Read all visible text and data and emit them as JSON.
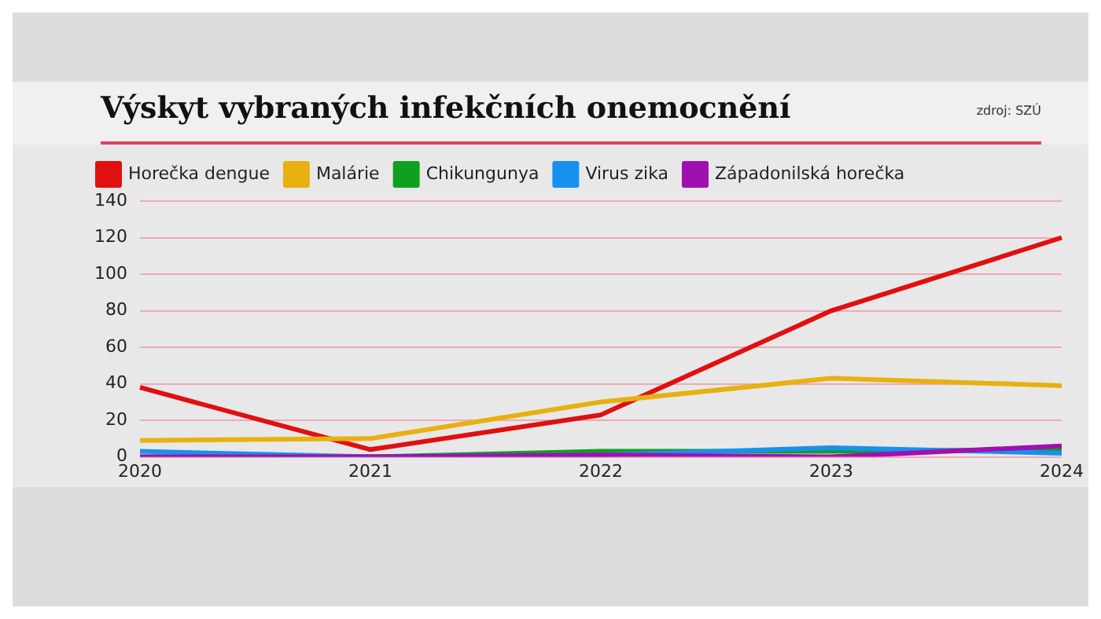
{
  "chart_data": {
    "type": "line",
    "title": "Výskyt vybraných infekčních onemocnění",
    "annotations": [
      "zdroj: SZÚ"
    ],
    "categories": [
      "2020",
      "2021",
      "2022",
      "2023",
      "2024"
    ],
    "series": [
      {
        "name": "Horečka dengue",
        "color": "#e01010",
        "values": [
          38,
          4,
          23,
          80,
          120
        ]
      },
      {
        "name": "Malárie",
        "color": "#e8b010",
        "values": [
          9,
          10,
          30,
          43,
          39
        ]
      },
      {
        "name": "Chikungunya",
        "color": "#10a020",
        "values": [
          0,
          0,
          3,
          3,
          4
        ]
      },
      {
        "name": "Virus zika",
        "color": "#1890f0",
        "values": [
          3,
          0,
          1,
          5,
          2
        ]
      },
      {
        "name": "Západonilská horečka",
        "color": "#a010b0",
        "values": [
          0,
          0,
          1,
          0,
          6
        ]
      }
    ],
    "ylim": [
      0,
      140
    ],
    "yticks": [
      0,
      20,
      40,
      60,
      80,
      100,
      120,
      140
    ],
    "grid": "y",
    "legend": "top",
    "marker": "none",
    "line_style": "solid"
  }
}
